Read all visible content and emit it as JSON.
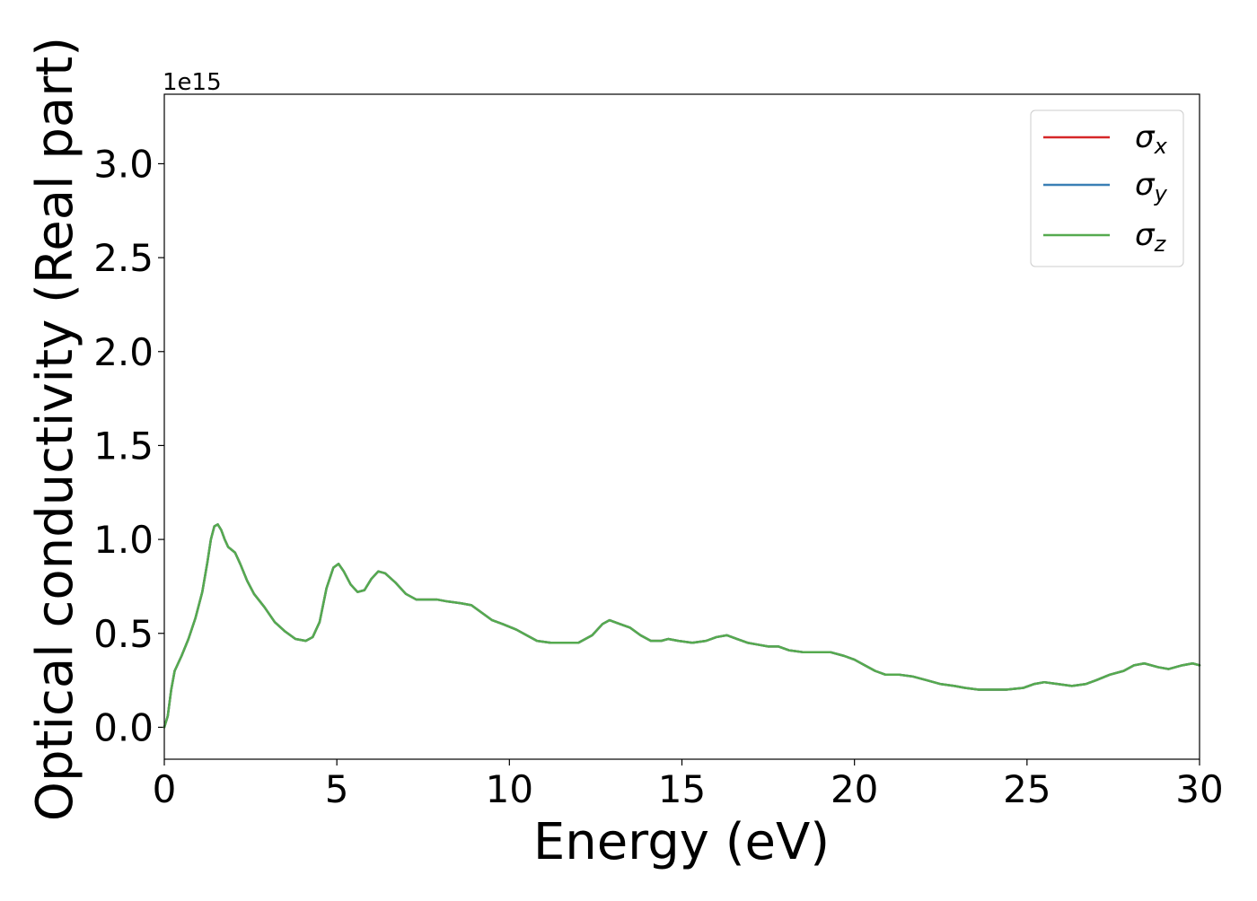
{
  "chart_data": {
    "type": "line",
    "xlabel": "Energy (eV)",
    "ylabel": "Optical conductivity (Real part)",
    "offset_label": "1e15",
    "xlim": [
      0,
      30
    ],
    "ylim": [
      -0.17,
      3.37
    ],
    "x_ticks": [
      0,
      5,
      10,
      15,
      20,
      25,
      30
    ],
    "x_tick_labels": [
      "0",
      "5",
      "10",
      "15",
      "20",
      "25",
      "30"
    ],
    "y_ticks": [
      0.0,
      0.5,
      1.0,
      1.5,
      2.0,
      2.5,
      3.0
    ],
    "y_tick_labels": [
      "0.0",
      "0.5",
      "1.0",
      "1.5",
      "2.0",
      "2.5",
      "3.0"
    ],
    "grid": false,
    "legend_position": "top-right",
    "series_points": [
      [
        0.0,
        0.0
      ],
      [
        0.1,
        0.06
      ],
      [
        0.2,
        0.2
      ],
      [
        0.3,
        0.3
      ],
      [
        0.5,
        0.38
      ],
      [
        0.7,
        0.47
      ],
      [
        0.9,
        0.58
      ],
      [
        1.1,
        0.72
      ],
      [
        1.25,
        0.88
      ],
      [
        1.35,
        1.0
      ],
      [
        1.45,
        1.07
      ],
      [
        1.55,
        1.08
      ],
      [
        1.65,
        1.05
      ],
      [
        1.75,
        1.0
      ],
      [
        1.85,
        0.96
      ],
      [
        2.05,
        0.93
      ],
      [
        2.2,
        0.87
      ],
      [
        2.4,
        0.78
      ],
      [
        2.6,
        0.71
      ],
      [
        2.9,
        0.64
      ],
      [
        3.2,
        0.56
      ],
      [
        3.5,
        0.51
      ],
      [
        3.8,
        0.47
      ],
      [
        4.1,
        0.46
      ],
      [
        4.3,
        0.48
      ],
      [
        4.5,
        0.56
      ],
      [
        4.7,
        0.74
      ],
      [
        4.9,
        0.85
      ],
      [
        5.05,
        0.87
      ],
      [
        5.2,
        0.83
      ],
      [
        5.4,
        0.76
      ],
      [
        5.6,
        0.72
      ],
      [
        5.8,
        0.73
      ],
      [
        6.0,
        0.79
      ],
      [
        6.2,
        0.83
      ],
      [
        6.4,
        0.82
      ],
      [
        6.7,
        0.77
      ],
      [
        7.0,
        0.71
      ],
      [
        7.3,
        0.68
      ],
      [
        7.6,
        0.68
      ],
      [
        7.9,
        0.68
      ],
      [
        8.2,
        0.67
      ],
      [
        8.6,
        0.66
      ],
      [
        8.9,
        0.65
      ],
      [
        9.2,
        0.61
      ],
      [
        9.5,
        0.57
      ],
      [
        9.8,
        0.55
      ],
      [
        10.2,
        0.52
      ],
      [
        10.5,
        0.49
      ],
      [
        10.8,
        0.46
      ],
      [
        11.2,
        0.45
      ],
      [
        11.6,
        0.45
      ],
      [
        12.0,
        0.45
      ],
      [
        12.4,
        0.49
      ],
      [
        12.7,
        0.55
      ],
      [
        12.9,
        0.57
      ],
      [
        13.2,
        0.55
      ],
      [
        13.5,
        0.53
      ],
      [
        13.8,
        0.49
      ],
      [
        14.1,
        0.46
      ],
      [
        14.4,
        0.46
      ],
      [
        14.6,
        0.47
      ],
      [
        14.9,
        0.46
      ],
      [
        15.3,
        0.45
      ],
      [
        15.7,
        0.46
      ],
      [
        16.0,
        0.48
      ],
      [
        16.3,
        0.49
      ],
      [
        16.6,
        0.47
      ],
      [
        16.9,
        0.45
      ],
      [
        17.2,
        0.44
      ],
      [
        17.5,
        0.43
      ],
      [
        17.8,
        0.43
      ],
      [
        18.1,
        0.41
      ],
      [
        18.5,
        0.4
      ],
      [
        18.9,
        0.4
      ],
      [
        19.3,
        0.4
      ],
      [
        19.7,
        0.38
      ],
      [
        20.0,
        0.36
      ],
      [
        20.3,
        0.33
      ],
      [
        20.6,
        0.3
      ],
      [
        20.9,
        0.28
      ],
      [
        21.3,
        0.28
      ],
      [
        21.7,
        0.27
      ],
      [
        22.1,
        0.25
      ],
      [
        22.5,
        0.23
      ],
      [
        22.9,
        0.22
      ],
      [
        23.2,
        0.21
      ],
      [
        23.6,
        0.2
      ],
      [
        24.0,
        0.2
      ],
      [
        24.4,
        0.2
      ],
      [
        24.9,
        0.21
      ],
      [
        25.2,
        0.23
      ],
      [
        25.5,
        0.24
      ],
      [
        25.9,
        0.23
      ],
      [
        26.3,
        0.22
      ],
      [
        26.7,
        0.23
      ],
      [
        27.0,
        0.25
      ],
      [
        27.4,
        0.28
      ],
      [
        27.8,
        0.3
      ],
      [
        28.1,
        0.33
      ],
      [
        28.4,
        0.34
      ],
      [
        28.8,
        0.32
      ],
      [
        29.1,
        0.31
      ],
      [
        29.5,
        0.33
      ],
      [
        29.8,
        0.34
      ],
      [
        30.0,
        0.33
      ]
    ],
    "series": [
      {
        "name": "σx",
        "sub": "x",
        "color": "#d62728",
        "width": 2.5
      },
      {
        "name": "σy",
        "sub": "y",
        "color": "#3a7fb5",
        "width": 2.5
      },
      {
        "name": "σz",
        "sub": "z",
        "color": "#55aa4f",
        "width": 2.5
      }
    ]
  }
}
